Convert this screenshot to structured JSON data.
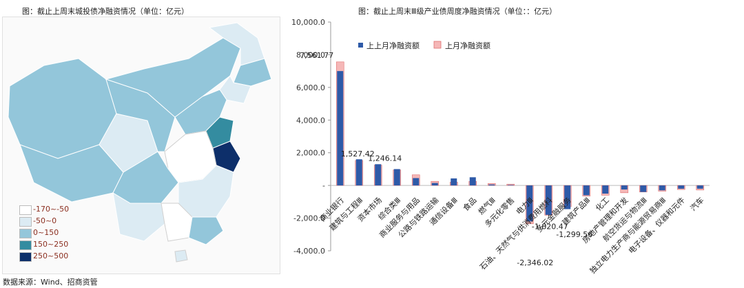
{
  "map": {
    "title": "图：截止上周末城投债净融资情况（单位：亿元）",
    "legend": [
      {
        "label": "-170~-50",
        "color": "#ffffff"
      },
      {
        "label": "-50~0",
        "color": "#dcebf3"
      },
      {
        "label": "0~150",
        "color": "#93c6da"
      },
      {
        "label": "150~250",
        "color": "#348ca0"
      },
      {
        "label": "250~500",
        "color": "#0d2f6a"
      }
    ]
  },
  "source": "数据来源：Wind、招商资管",
  "chart_data": {
    "type": "bar",
    "title": "图：截止上周末Ⅲ级产业债周度净融资情况（单位：：亿元）",
    "categories": [
      "商业银行",
      "建筑与工程Ⅲ",
      "资本市场",
      "综合类Ⅲ",
      "商业服务与用品",
      "公路与铁路运输",
      "通信设备Ⅲ",
      "食品",
      "燃气Ⅲ",
      "多元化零售",
      "电力Ⅲ",
      "石油、天然气与供消费用燃料",
      "多元金融服务",
      "建筑产品Ⅲ",
      "化工",
      "房地产管理和开发",
      "航空货运与物流Ⅲ",
      "独立电力生产商与能源贸易商Ⅲ",
      "电子设备、仪器和元件",
      "汽车"
    ],
    "series": [
      {
        "name": "上上月净融资额",
        "color": "#2e5aa8",
        "values": [
          7000,
          1600,
          1300,
          1000,
          450,
          150,
          430,
          500,
          60,
          30,
          -2200,
          -1800,
          -1450,
          -600,
          -500,
          -250,
          -400,
          -300,
          -200,
          -200
        ]
      },
      {
        "name": "上月净融资额",
        "color": "#f5b7b7",
        "values": [
          7561.77,
          1527.42,
          1246.14,
          950,
          650,
          250,
          200,
          250,
          120,
          80,
          -2346.02,
          -1820.47,
          -1299.56,
          -650,
          -600,
          -450,
          -400,
          -350,
          -250,
          -280
        ]
      }
    ],
    "data_labels": [
      "7,561.77",
      "1,527.42",
      "1,246.14",
      "-2,346.02",
      "-1,820.47",
      "-1,299.56"
    ],
    "yticks": [
      "10,000.0",
      "8,000.0",
      "6,000.0",
      "4,000.0",
      "2,000.0",
      "-",
      "-2,000.0",
      "-4,000.0"
    ],
    "ylim": [
      -4000,
      10000
    ],
    "legend_position": "top-left"
  }
}
